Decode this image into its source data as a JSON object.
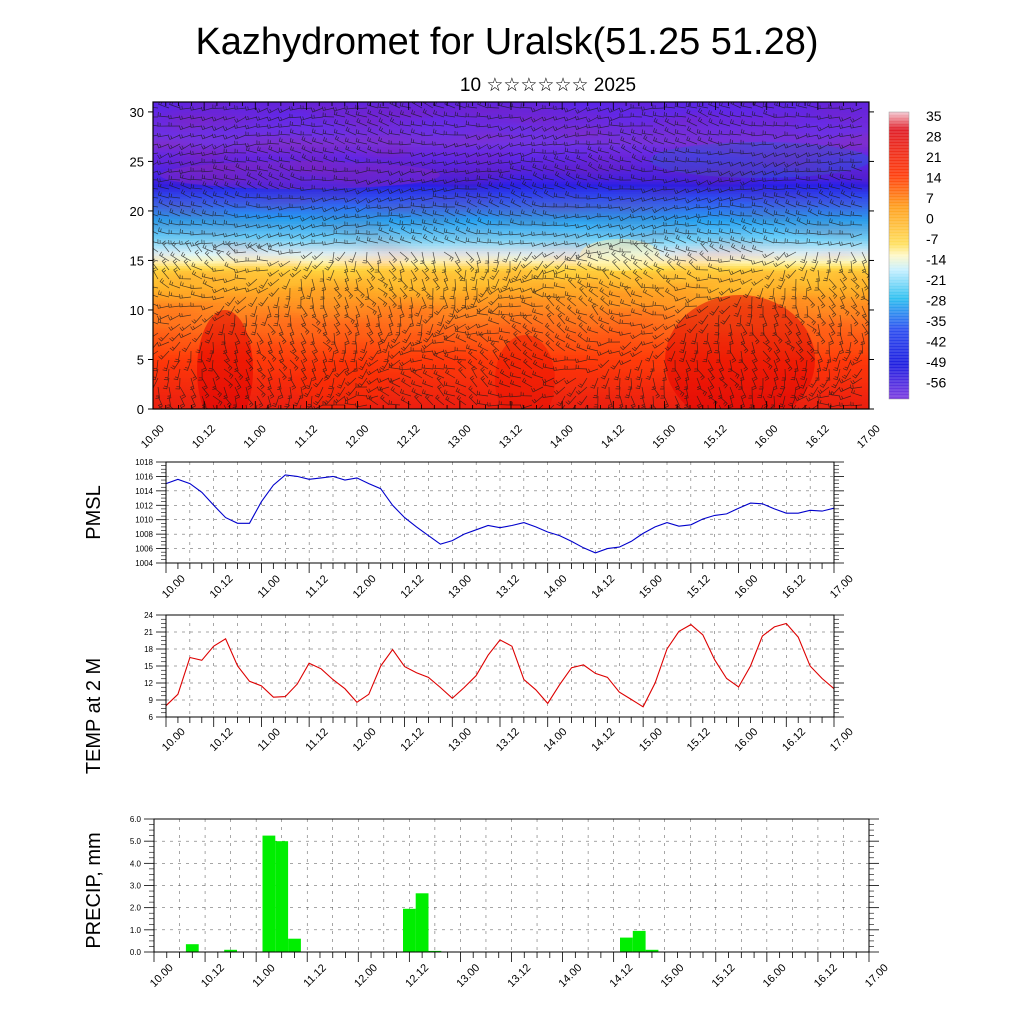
{
  "title": "Kazhydromet for Uralsk(51.25 51.28)",
  "subtitle": "10 ☆☆☆☆☆☆ 2025",
  "time_ticks": [
    "10.00",
    "10.12",
    "11.00",
    "11.12",
    "12.00",
    "12.12",
    "13.00",
    "13.12",
    "14.00",
    "14.12",
    "15.00",
    "15.12",
    "16.00",
    "16.12",
    "17.00"
  ],
  "colorbar_labels": [
    "35",
    "28",
    "21",
    "14",
    "7",
    "0",
    "-7",
    "-14",
    "-21",
    "-28",
    "-35",
    "-42",
    "-49",
    "-56"
  ],
  "chart_data": [
    {
      "type": "heatmap",
      "name": "cross-section",
      "y_ticks": [
        "0",
        "5",
        "10",
        "15",
        "20",
        "25",
        "30"
      ],
      "ylim": [
        0,
        31
      ],
      "xlim": [
        0,
        168
      ],
      "color_range": [
        -60,
        38
      ],
      "temperature_profile": [
        {
          "level": 0,
          "value": 26
        },
        {
          "level": 5,
          "value": 21
        },
        {
          "level": 10,
          "value": 12
        },
        {
          "level": 14,
          "value": 2
        },
        {
          "level": 15,
          "value": -8
        },
        {
          "level": 18,
          "value": -24
        },
        {
          "level": 21,
          "value": -40
        },
        {
          "level": 23,
          "value": -52
        },
        {
          "level": 27,
          "value": -58
        },
        {
          "level": 31,
          "value": -55
        }
      ],
      "wind_barbs": true,
      "grid": false
    },
    {
      "type": "line",
      "name": "pmsl",
      "ylabel": "PMSL",
      "y_ticks": [
        "1018",
        "1016",
        "1014",
        "1012",
        "1010",
        "1008",
        "1006",
        "1004"
      ],
      "ylim": [
        1004,
        1018
      ],
      "color": "#0000cc",
      "x": [
        0,
        3,
        6,
        9,
        12,
        15,
        18,
        21,
        24,
        27,
        30,
        33,
        36,
        39,
        42,
        45,
        48,
        51,
        54,
        57,
        60,
        63,
        66,
        69,
        72,
        75,
        78,
        81,
        84,
        87,
        90,
        93,
        96,
        99,
        102,
        105,
        108,
        111,
        114,
        117,
        120,
        123,
        126,
        129,
        132,
        135,
        138,
        141,
        144,
        147,
        150,
        153,
        156,
        159,
        162,
        165,
        168
      ],
      "values": [
        1015.0,
        1015.6,
        1015.0,
        1013.8,
        1012.0,
        1010.3,
        1009.5,
        1009.5,
        1012.5,
        1014.8,
        1016.2,
        1016.0,
        1015.6,
        1015.8,
        1016.0,
        1015.5,
        1015.8,
        1015.0,
        1014.3,
        1012.0,
        1010.3,
        1009.0,
        1007.8,
        1006.6,
        1007.1,
        1008.0,
        1008.6,
        1009.2,
        1008.9,
        1009.2,
        1009.6,
        1009.0,
        1008.3,
        1007.8,
        1007.0,
        1006.1,
        1005.4,
        1006.0,
        1006.2,
        1007.0,
        1008.1,
        1009.0,
        1009.6,
        1009.1,
        1009.3,
        1010.1,
        1010.6,
        1010.8,
        1011.6,
        1012.3,
        1012.2,
        1011.5,
        1010.9,
        1010.9,
        1011.3,
        1011.2,
        1011.6
      ],
      "grid": true
    },
    {
      "type": "line",
      "name": "temperature",
      "ylabel": "TEMP at 2 M",
      "y_ticks": [
        "24",
        "21",
        "18",
        "15",
        "12",
        "9",
        "6"
      ],
      "ylim": [
        6,
        24
      ],
      "color": "#dd0000",
      "x": [
        0,
        3,
        6,
        9,
        12,
        15,
        18,
        21,
        24,
        27,
        30,
        33,
        36,
        39,
        42,
        45,
        48,
        51,
        54,
        57,
        60,
        63,
        66,
        69,
        72,
        75,
        78,
        81,
        84,
        87,
        90,
        93,
        96,
        99,
        102,
        105,
        108,
        111,
        114,
        117,
        120,
        123,
        126,
        129,
        132,
        135,
        138,
        141,
        144,
        147,
        150,
        153,
        156,
        159,
        162,
        165,
        168
      ],
      "values": [
        8.0,
        10.0,
        16.5,
        16.0,
        18.5,
        19.8,
        15.0,
        12.3,
        11.5,
        9.5,
        9.6,
        11.8,
        15.5,
        14.5,
        12.6,
        11.0,
        8.6,
        10.0,
        15.0,
        17.9,
        14.9,
        13.8,
        13.0,
        11.2,
        9.3,
        11.2,
        13.3,
        16.9,
        19.6,
        18.5,
        12.6,
        10.8,
        8.4,
        11.7,
        14.7,
        15.2,
        13.7,
        13.0,
        10.4,
        9.1,
        7.8,
        12.0,
        18.0,
        21.1,
        22.3,
        20.5,
        16.1,
        12.8,
        11.3,
        15.0,
        20.3,
        21.9,
        22.5,
        20.1,
        15.0,
        12.8,
        11.0
      ],
      "grid": true
    },
    {
      "type": "bar",
      "name": "precipitation",
      "ylabel": "PRECIP, mm",
      "y_ticks": [
        "6.0",
        "5.0",
        "4.0",
        "3.0",
        "2.0",
        "1.0",
        "0.0"
      ],
      "ylim": [
        0,
        6
      ],
      "color": "#00ee00",
      "bar_width_hours": 3,
      "bars": [
        {
          "x": 9,
          "value": 0.35
        },
        {
          "x": 18,
          "value": 0.1
        },
        {
          "x": 27,
          "value": 5.25
        },
        {
          "x": 30,
          "value": 5.0
        },
        {
          "x": 33,
          "value": 0.6
        },
        {
          "x": 60,
          "value": 1.95
        },
        {
          "x": 63,
          "value": 2.65
        },
        {
          "x": 66,
          "value": 0.05
        },
        {
          "x": 111,
          "value": 0.65
        },
        {
          "x": 114,
          "value": 0.95
        },
        {
          "x": 117,
          "value": 0.1
        }
      ],
      "grid": true
    }
  ]
}
